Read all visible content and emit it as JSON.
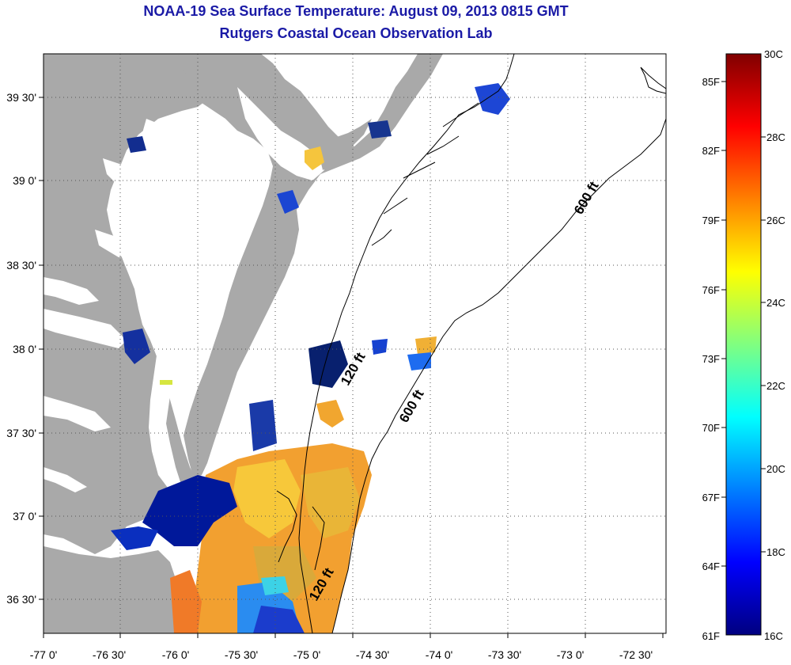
{
  "title": {
    "line1": "NOAA-19 Sea Surface Temperature:  August 09, 2013 0815 GMT",
    "line2": "Rutgers Coastal Ocean Observation Lab"
  },
  "map": {
    "lon_labels": [
      "-77 0'",
      "-76 30'",
      "-76 0'",
      "-75 30'",
      "-75 0'",
      "-74 30'",
      "-74 0'",
      "-73 30'",
      "-73 0'",
      "-72 30'"
    ],
    "lat_labels": [
      "39 30'",
      "39 0'",
      "38 30'",
      "38 0'",
      "37 30'",
      "37 0'",
      "36 30'"
    ],
    "contour_labels": [
      "600 ft",
      "120 ft",
      "600 ft",
      "120 ft"
    ],
    "colors": {
      "land": "#a9a9a9",
      "ocean": "#ffffff",
      "title": "#1a1aa6"
    }
  },
  "colorbar": {
    "fahrenheit": [
      "85F",
      "82F",
      "79F",
      "76F",
      "73F",
      "70F",
      "67F",
      "64F",
      "61F"
    ],
    "celsius": [
      "30C",
      "28C",
      "26C",
      "24C",
      "22C",
      "20C",
      "18C",
      "16C"
    ],
    "min_c": 16,
    "max_c": 30
  }
}
